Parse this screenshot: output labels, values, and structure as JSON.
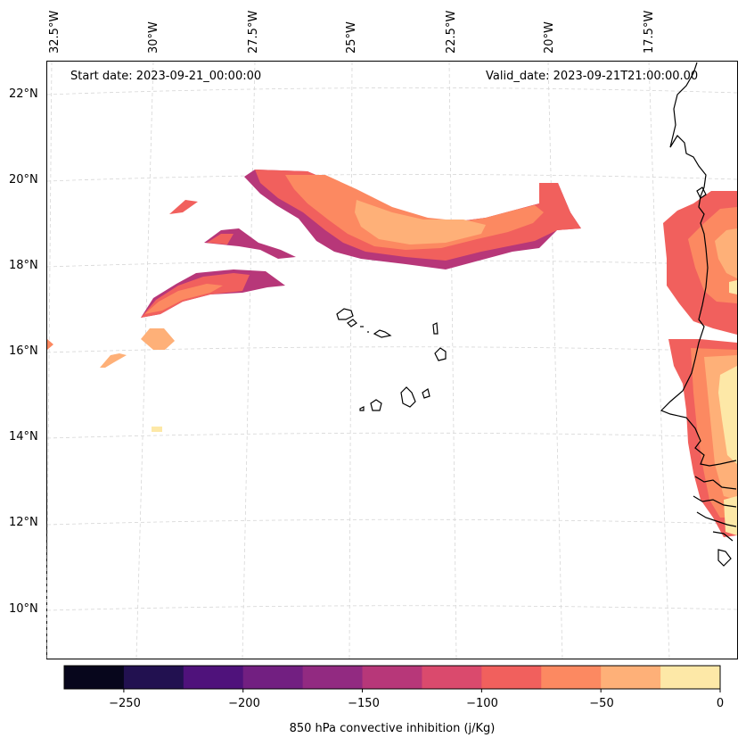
{
  "map": {
    "start_date": "Start date: 2023-09-21_00:00:00",
    "valid_date": "Valid_date: 2023-09-21T21:00:00.00",
    "lon_labels": [
      "32.5°W",
      "30°W",
      "27.5°W",
      "25°W",
      "22.5°W",
      "20°W",
      "17.5°W"
    ],
    "lat_labels": [
      "22°N",
      "20°N",
      "18°N",
      "16°N",
      "14°N",
      "12°N",
      "10°N"
    ]
  },
  "colorbar": {
    "title": "850 hPa convective inhibition (j/Kg)",
    "tick_labels": [
      "−250",
      "−200",
      "−150",
      "−100",
      "−50",
      "0"
    ],
    "levels": [
      -275,
      -250,
      -225,
      -200,
      -175,
      -150,
      -125,
      -100,
      -75,
      -50,
      -25,
      0
    ],
    "colors": [
      "#07061c",
      "#221150",
      "#4f127b",
      "#721f81",
      "#922a81",
      "#b73779",
      "#da4a6d",
      "#f1605d",
      "#fc8961",
      "#feb078",
      "#fde8a7"
    ]
  },
  "colors": {
    "coastline": "#000000",
    "gridline": "#d6d6d6"
  }
}
